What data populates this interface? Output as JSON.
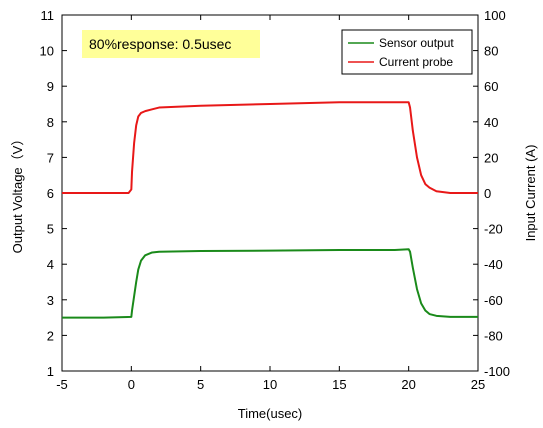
{
  "chart_data": {
    "type": "line",
    "xlabel": "Time(usec)",
    "ylabel_left": "Output Voltage（V）",
    "ylabel_right": "Input Current (A)",
    "xlim": [
      -5,
      25
    ],
    "ylim_left": [
      1,
      11
    ],
    "ylim_right": [
      -100,
      100
    ],
    "x_ticks": [
      "-5",
      "0",
      "5",
      "10",
      "15",
      "20",
      "25"
    ],
    "y_left_ticks": [
      "1",
      "2",
      "3",
      "4",
      "5",
      "6",
      "7",
      "8",
      "9",
      "10",
      "11"
    ],
    "y_right_ticks": [
      "-100",
      "-80",
      "-60",
      "-40",
      "-20",
      "0",
      "20",
      "40",
      "60",
      "80",
      "100"
    ],
    "grid": false,
    "legend_position": "top-right",
    "annotation": "80%response: 0.5usec",
    "colors": {
      "sensor": "#1a8a1a",
      "current": "#e81818",
      "annotation_bg": "#ffff99"
    },
    "series": [
      {
        "name": "Sensor output",
        "axis": "left",
        "x": [
          -5,
          -2,
          0,
          0.05,
          0.2,
          0.35,
          0.5,
          0.7,
          1.0,
          1.5,
          2,
          5,
          10,
          15,
          19,
          20,
          20.1,
          20.3,
          20.6,
          20.9,
          21.2,
          21.5,
          22,
          23,
          25
        ],
        "y": [
          2.5,
          2.5,
          2.52,
          2.7,
          3.1,
          3.5,
          3.85,
          4.1,
          4.25,
          4.33,
          4.35,
          4.37,
          4.38,
          4.4,
          4.4,
          4.42,
          4.35,
          3.9,
          3.3,
          2.9,
          2.7,
          2.6,
          2.55,
          2.52,
          2.52
        ]
      },
      {
        "name": "Current probe",
        "axis": "right",
        "x": [
          -5,
          -2,
          -0.2,
          0,
          0.05,
          0.2,
          0.35,
          0.5,
          0.7,
          1.0,
          1.5,
          2,
          5,
          10,
          15,
          19,
          20,
          20.1,
          20.3,
          20.6,
          20.9,
          21.2,
          21.5,
          22,
          23,
          25
        ],
        "y": [
          0,
          0,
          0,
          2,
          12,
          28,
          38,
          43,
          45,
          46,
          47,
          48,
          49,
          50,
          51,
          51,
          51,
          48,
          35,
          20,
          10,
          5,
          3,
          1,
          0,
          0
        ]
      }
    ]
  }
}
